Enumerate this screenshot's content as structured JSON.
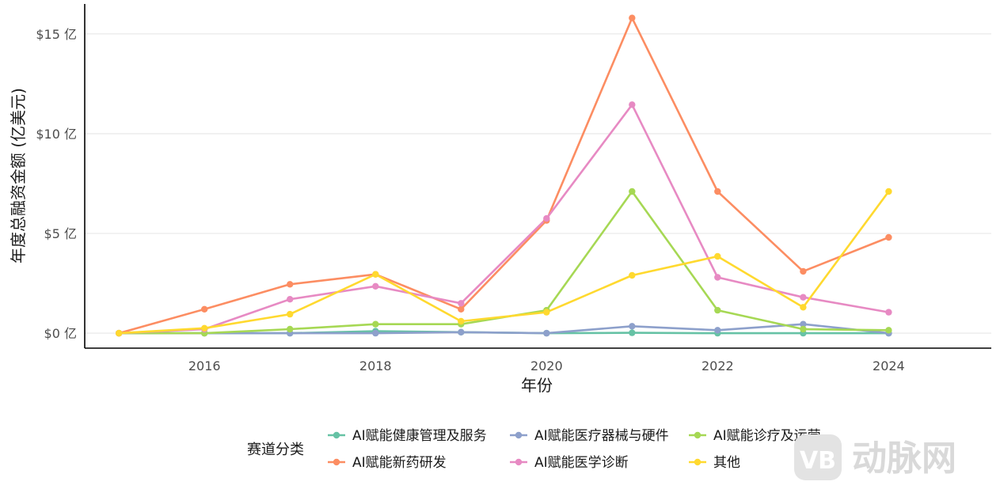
{
  "chart_data": {
    "type": "line",
    "title": "",
    "xlabel": "年份",
    "ylabel": "年度总融资金额 (亿美元)",
    "x": [
      2015,
      2016,
      2017,
      2018,
      2019,
      2020,
      2021,
      2022,
      2023,
      2024
    ],
    "x_ticks": [
      2016,
      2018,
      2020,
      2022,
      2024
    ],
    "x_tick_labels": [
      "2016",
      "2018",
      "2020",
      "2022",
      "2024"
    ],
    "xlim": [
      2014.6,
      2025.2
    ],
    "y_ticks": [
      0,
      5,
      10,
      15
    ],
    "y_tick_labels": [
      "$0 亿",
      "$5 亿",
      "$10 亿",
      "$15 亿"
    ],
    "ylim": [
      -0.75,
      16.5
    ],
    "grid": "horizontal",
    "legend": {
      "title": "赛道分类",
      "position": "bottom"
    },
    "series": [
      {
        "name": "AI赋能健康管理及服务",
        "color": "#66c2a5",
        "values": [
          0.0,
          0.0,
          0.0,
          0.1,
          0.05,
          0.0,
          0.02,
          0.0,
          0.0,
          0.0
        ]
      },
      {
        "name": "AI赋能医疗器械与硬件",
        "color": "#8da0cb",
        "values": [
          0.0,
          0.0,
          0.0,
          0.0,
          0.05,
          0.0,
          0.35,
          0.15,
          0.45,
          0.0
        ]
      },
      {
        "name": "AI赋能诊疗及运营",
        "color": "#a6d854",
        "values": [
          0.0,
          0.0,
          0.2,
          0.45,
          0.45,
          1.15,
          7.1,
          1.15,
          0.2,
          0.15
        ]
      },
      {
        "name": "AI赋能新药研发",
        "color": "#fc8d62",
        "values": [
          0.0,
          1.2,
          2.45,
          2.95,
          1.2,
          5.65,
          15.8,
          7.1,
          3.1,
          4.8
        ]
      },
      {
        "name": "AI赋能医学诊断",
        "color": "#e78ac3",
        "values": [
          0.0,
          0.2,
          1.7,
          2.35,
          1.5,
          5.75,
          11.45,
          2.8,
          1.8,
          1.05
        ]
      },
      {
        "name": "其他",
        "color": "#ffd92f",
        "values": [
          0.0,
          0.25,
          0.95,
          2.95,
          0.6,
          1.05,
          2.9,
          3.85,
          1.3,
          7.1
        ]
      }
    ]
  },
  "watermark": {
    "text": "动脉网",
    "logo_text": "VB"
  }
}
